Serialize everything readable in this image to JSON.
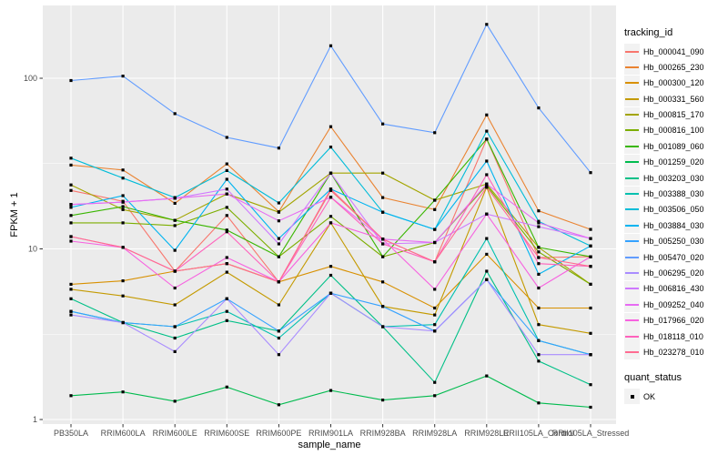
{
  "figure": {
    "background": "#FFFFFF",
    "panel_background": "#EBEBEB",
    "grid_color": "#FFFFFF",
    "axis_text_color": "#4D4D4D",
    "tick_color": "#333333",
    "marker_color": "#000000"
  },
  "axes": {
    "x_title": "sample_name",
    "y_title": "FPKM + 1"
  },
  "legend": {
    "tracking_title": "tracking_id",
    "quant_title": "quant_status",
    "quant_items": [
      {
        "label": "OK",
        "marker": "black-square"
      }
    ]
  },
  "chart_data": {
    "type": "line",
    "title": "",
    "xlabel": "sample_name",
    "ylabel": "FPKM + 1",
    "y_scale": "log10",
    "ylim": [
      0.95,
      270
    ],
    "y_ticks": [
      1,
      10,
      100
    ],
    "y_tick_labels": [
      "1",
      "10",
      "100"
    ],
    "y_minor_ticks": [
      3.162,
      31.62
    ],
    "grid": true,
    "legend_position": "right",
    "marker": "filled-square-black",
    "categories": [
      "PB350LA",
      "RRIM600LA",
      "RRIM600LE",
      "RRIM600SE",
      "RRIM600PE",
      "RRIM901LA",
      "RRIM928BA",
      "RRIM928LA",
      "RRIM928LE",
      "RRII105LA_Control",
      "RRII105LA_Stressed"
    ],
    "series": [
      {
        "name": "Hb_000041_090",
        "color": "#F8766D",
        "values": [
          22,
          19,
          7.4,
          15.7,
          6.4,
          22,
          11.4,
          8.4,
          44,
          8.9,
          9.0
        ]
      },
      {
        "name": "Hb_000265_230",
        "color": "#EA8331",
        "values": [
          31,
          29,
          18.5,
          31.5,
          16.5,
          52,
          20,
          17,
          61,
          16.7,
          13
        ]
      },
      {
        "name": "Hb_000300_120",
        "color": "#D89000",
        "values": [
          6.2,
          6.5,
          7.4,
          8.2,
          6.4,
          7.9,
          6.4,
          4.5,
          9.3,
          4.5,
          4.5
        ]
      },
      {
        "name": "Hb_000331_560",
        "color": "#C49A00",
        "values": [
          5.8,
          5.3,
          4.7,
          7.3,
          4.7,
          14.2,
          4.6,
          4.1,
          23,
          3.6,
          3.2
        ]
      },
      {
        "name": "Hb_000815_170",
        "color": "#A3A500",
        "values": [
          23.7,
          17,
          14.7,
          21,
          16.4,
          27.8,
          27.8,
          19.3,
          24,
          10.2,
          6.2
        ]
      },
      {
        "name": "Hb_000816_100",
        "color": "#7CAE00",
        "values": [
          14.2,
          14.2,
          13.7,
          17.5,
          9.0,
          15.5,
          9.0,
          10.9,
          23.5,
          9.6,
          6.2
        ]
      },
      {
        "name": "Hb_001089_060",
        "color": "#39B600",
        "values": [
          15.7,
          17.7,
          14.7,
          12.9,
          9.0,
          27.8,
          9.0,
          19.3,
          44,
          10.2,
          9.0
        ]
      },
      {
        "name": "Hb_001259_020",
        "color": "#00BB4E",
        "values": [
          1.38,
          1.45,
          1.28,
          1.55,
          1.22,
          1.48,
          1.3,
          1.38,
          1.8,
          1.25,
          1.18
        ]
      },
      {
        "name": "Hb_003203_030",
        "color": "#00C087",
        "values": [
          5.1,
          3.7,
          3.0,
          3.8,
          3.3,
          7.0,
          3.5,
          1.65,
          7.4,
          2.2,
          1.6
        ]
      },
      {
        "name": "Hb_003388_030",
        "color": "#00C0AF",
        "values": [
          4.3,
          3.7,
          3.5,
          4.3,
          3.0,
          5.5,
          3.5,
          3.6,
          11.5,
          2.9,
          2.4
        ]
      },
      {
        "name": "Hb_003506_050",
        "color": "#00BCD8",
        "values": [
          34,
          26,
          20,
          28.8,
          18.6,
          39.5,
          16.4,
          13,
          49,
          14.5,
          10.4
        ]
      },
      {
        "name": "Hb_003884_030",
        "color": "#00B4F0",
        "values": [
          17.5,
          20.5,
          9.8,
          25.6,
          11.5,
          22.4,
          16.4,
          13,
          32.7,
          7.1,
          10.4
        ]
      },
      {
        "name": "Hb_005250_030",
        "color": "#35A2FF",
        "values": [
          4.3,
          3.7,
          3.5,
          5.1,
          3.3,
          5.5,
          4.6,
          3.3,
          6.6,
          2.9,
          2.4
        ]
      },
      {
        "name": "Hb_005470_020",
        "color": "#619CFF",
        "values": [
          97,
          103,
          62,
          45,
          39,
          155,
          54,
          48,
          207,
          67,
          28
        ]
      },
      {
        "name": "Hb_006295_020",
        "color": "#A98CFF",
        "values": [
          4.1,
          3.7,
          2.5,
          5.1,
          2.4,
          5.5,
          3.5,
          3.3,
          6.6,
          2.4,
          2.4
        ]
      },
      {
        "name": "Hb_006816_430",
        "color": "#CF78FF",
        "values": [
          18.2,
          18.8,
          19.8,
          22.4,
          10.7,
          27.8,
          10.7,
          10.9,
          16,
          13.5,
          11.5
        ]
      },
      {
        "name": "Hb_009252_040",
        "color": "#E76BF3",
        "values": [
          18.2,
          18.8,
          19.8,
          21,
          14.6,
          20.1,
          11.4,
          10.9,
          24,
          14.2,
          11.5
        ]
      },
      {
        "name": "Hb_017966_020",
        "color": "#F763E0",
        "values": [
          11.1,
          10.2,
          5.9,
          8.9,
          6.4,
          14.2,
          11.4,
          5.8,
          16,
          5.9,
          9.0
        ]
      },
      {
        "name": "Hb_018118_010",
        "color": "#FF62BC",
        "values": [
          11.8,
          10.2,
          7.4,
          12.6,
          6.4,
          20.1,
          10.7,
          8.4,
          27.2,
          8.2,
          7.9
        ]
      },
      {
        "name": "Hb_023278_010",
        "color": "#FF6C91",
        "values": [
          11.8,
          10.2,
          7.4,
          8.2,
          6.4,
          22.4,
          11.4,
          8.4,
          23,
          8.9,
          7.9
        ]
      }
    ]
  }
}
